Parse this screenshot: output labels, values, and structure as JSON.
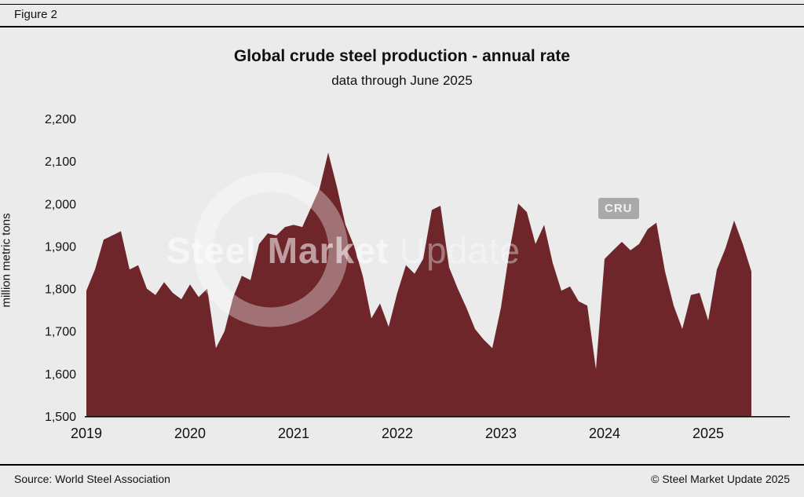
{
  "figure": {
    "label": "Figure 2"
  },
  "chart_data": {
    "type": "area",
    "title": "Global crude steel production - annual rate",
    "subtitle": "data through June 2025",
    "xlabel": "",
    "ylabel": "million metric tons",
    "ylim": [
      1500,
      2200
    ],
    "x_start": "2019-01",
    "x_end": "2025-06",
    "frequency": "monthly",
    "grid": false,
    "legend": "none",
    "values": [
      1795,
      1845,
      1915,
      1925,
      1935,
      1845,
      1855,
      1800,
      1785,
      1815,
      1790,
      1775,
      1810,
      1780,
      1800,
      1660,
      1700,
      1780,
      1830,
      1820,
      1905,
      1930,
      1925,
      1945,
      1950,
      1945,
      1990,
      2035,
      2120,
      2040,
      1950,
      1900,
      1830,
      1730,
      1765,
      1710,
      1790,
      1855,
      1835,
      1870,
      1985,
      1995,
      1850,
      1800,
      1755,
      1705,
      1680,
      1660,
      1755,
      1890,
      2000,
      1980,
      1905,
      1950,
      1860,
      1795,
      1805,
      1770,
      1760,
      1610,
      1870,
      1890,
      1910,
      1890,
      1905,
      1940,
      1955,
      1840,
      1760,
      1705,
      1785,
      1790,
      1725,
      1845,
      1895,
      1960,
      1905,
      1840
    ],
    "y_ticks": [
      {
        "value": 1500,
        "label": "1,500"
      },
      {
        "value": 1600,
        "label": "1,600"
      },
      {
        "value": 1700,
        "label": "1,700"
      },
      {
        "value": 1800,
        "label": "1,800"
      },
      {
        "value": 1900,
        "label": "1,900"
      },
      {
        "value": 2000,
        "label": "2,000"
      },
      {
        "value": 2100,
        "label": "2,100"
      },
      {
        "value": 2200,
        "label": "2,200"
      }
    ],
    "x_ticks": [
      {
        "index": 0,
        "label": "2019"
      },
      {
        "index": 12,
        "label": "2020"
      },
      {
        "index": 24,
        "label": "2021"
      },
      {
        "index": 36,
        "label": "2022"
      },
      {
        "index": 48,
        "label": "2023"
      },
      {
        "index": 60,
        "label": "2024"
      },
      {
        "index": 72,
        "label": "2025"
      }
    ]
  },
  "watermark": {
    "brand_bold": "Steel Market",
    "brand_light": "Update",
    "cru": "CRU"
  },
  "footer": {
    "source": "Source: World Steel Association",
    "copyright": "© Steel Market Update 2025"
  },
  "colors": {
    "background": "#ebebeb",
    "area": "#6e262b",
    "text": "#111111",
    "watermark_ring": "rgba(255,255,255,0.35)"
  }
}
